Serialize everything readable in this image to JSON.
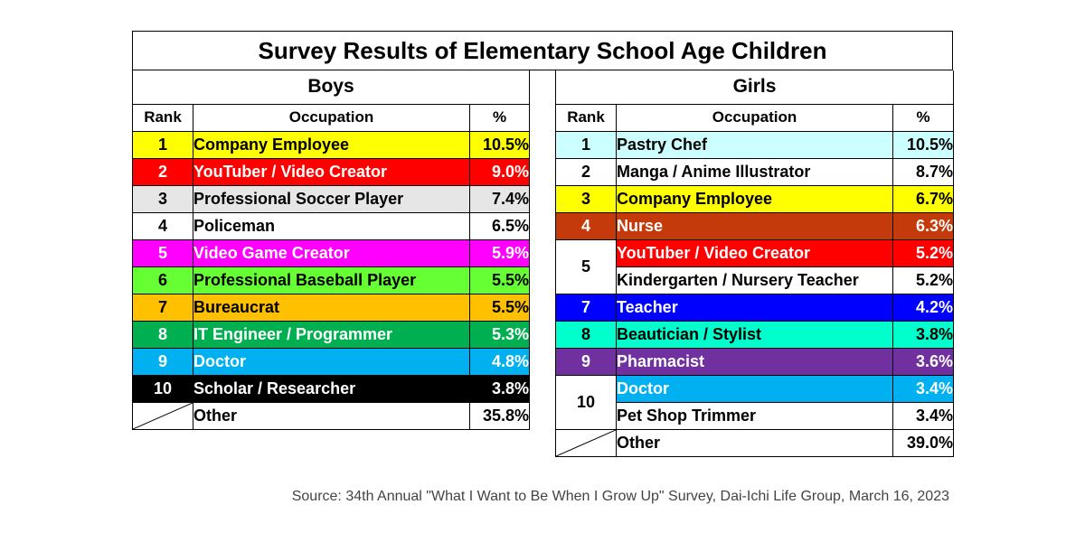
{
  "chart_data": {
    "type": "table",
    "title": "Survey Results of Elementary School Age Children",
    "columns": [
      "Rank",
      "Occupation",
      "%"
    ],
    "boys": {
      "heading": "Boys",
      "rows": [
        {
          "rank": "1",
          "occupation": "Company Employee",
          "pct": "10.5%",
          "bg": "#ffff00",
          "fg": "#000000"
        },
        {
          "rank": "2",
          "occupation": "YouTuber / Video Creator",
          "pct": "9.0%",
          "bg": "#ff0000",
          "fg": "#ffffff"
        },
        {
          "rank": "3",
          "occupation": "Professional Soccer Player",
          "pct": "7.4%",
          "bg": "#e7e6e6",
          "fg": "#000000"
        },
        {
          "rank": "4",
          "occupation": "Policeman",
          "pct": "6.5%",
          "bg": "#ffffff",
          "fg": "#000000"
        },
        {
          "rank": "5",
          "occupation": "Video Game Creator",
          "pct": "5.9%",
          "bg": "#ff00ff",
          "fg": "#ffffff"
        },
        {
          "rank": "6",
          "occupation": "Professional Baseball Player",
          "pct": "5.5%",
          "bg": "#66ff33",
          "fg": "#000000"
        },
        {
          "rank": "7",
          "occupation": "Bureaucrat",
          "pct": "5.5%",
          "bg": "#ffc000",
          "fg": "#000000"
        },
        {
          "rank": "8",
          "occupation": "IT Engineer / Programmer",
          "pct": "5.3%",
          "bg": "#00b050",
          "fg": "#ffffff"
        },
        {
          "rank": "9",
          "occupation": "Doctor",
          "pct": "4.8%",
          "bg": "#00b0f0",
          "fg": "#ffffff"
        },
        {
          "rank": "10",
          "occupation": "Scholar / Researcher",
          "pct": "3.8%",
          "bg": "#000000",
          "fg": "#ffffff"
        }
      ],
      "other": {
        "occupation": "Other",
        "pct": "35.8%"
      }
    },
    "girls": {
      "heading": "Girls",
      "rows": [
        {
          "rank": "1",
          "rankspan": 1,
          "occupation": "Pastry Chef",
          "pct": "10.5%",
          "bg": "#ccffff",
          "fg": "#000000"
        },
        {
          "rank": "2",
          "rankspan": 1,
          "occupation": "Manga / Anime Illustrator",
          "pct": "8.7%",
          "bg": "#ffffff",
          "fg": "#000000"
        },
        {
          "rank": "3",
          "rankspan": 1,
          "occupation": "Company Employee",
          "pct": "6.7%",
          "bg": "#ffff00",
          "fg": "#000000"
        },
        {
          "rank": "4",
          "rankspan": 1,
          "occupation": "Nurse",
          "pct": "6.3%",
          "bg": "#c43a0a",
          "fg": "#ffffff"
        },
        {
          "rank": "5",
          "rankspan": 2,
          "occupation": "YouTuber / Video Creator",
          "pct": "5.2%",
          "bg": "#ff0000",
          "fg": "#ffffff",
          "rankbg": "#ffffff",
          "rankfg": "#000000"
        },
        {
          "rank": null,
          "occupation": "Kindergarten / Nursery Teacher",
          "pct": "5.2%",
          "bg": "#ffffff",
          "fg": "#000000"
        },
        {
          "rank": "7",
          "rankspan": 1,
          "occupation": "Teacher",
          "pct": "4.2%",
          "bg": "#0000ff",
          "fg": "#ffffff"
        },
        {
          "rank": "8",
          "rankspan": 1,
          "occupation": "Beautician / Stylist",
          "pct": "3.8%",
          "bg": "#00ffcc",
          "fg": "#000000"
        },
        {
          "rank": "9",
          "rankspan": 1,
          "occupation": "Pharmacist",
          "pct": "3.6%",
          "bg": "#7030a0",
          "fg": "#ffffff"
        },
        {
          "rank": "10",
          "rankspan": 2,
          "occupation": "Doctor",
          "pct": "3.4%",
          "bg": "#00b0f0",
          "fg": "#ffffff",
          "rankbg": "#ffffff",
          "rankfg": "#000000"
        },
        {
          "rank": null,
          "occupation": "Pet Shop Trimmer",
          "pct": "3.4%",
          "bg": "#ffffff",
          "fg": "#000000"
        }
      ],
      "other": {
        "occupation": "Other",
        "pct": "39.0%"
      }
    }
  },
  "source": "Source:  34th Annual \"What I Want to Be When I Grow Up\" Survey, Dai-Ichi Life Group, March 16, 2023"
}
